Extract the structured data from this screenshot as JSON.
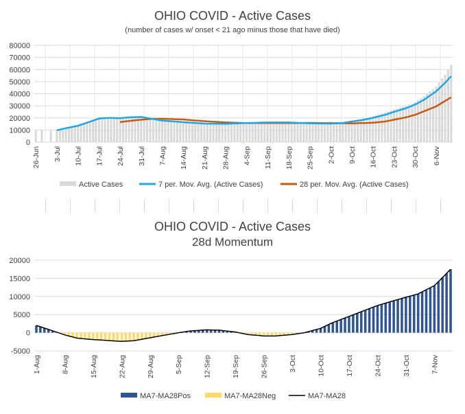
{
  "chart_data": [
    {
      "type": "bar",
      "title": "OHIO COVID - Active Cases",
      "subtitle": "(number of cases w/ onset < 21 ago minus those that have died)",
      "ylim": [
        0,
        80000
      ],
      "yticks": [
        "80000",
        "70000",
        "60000",
        "50000",
        "40000",
        "30000",
        "20000",
        "10000",
        "0"
      ],
      "xticks": [
        "26-Jun",
        "3-Jul",
        "10-Jul",
        "17-Jul",
        "24-Jul",
        "31-Jul",
        "7-Aug",
        "14-Aug",
        "21-Aug",
        "28-Aug",
        "4-Sep",
        "11-Sep",
        "18-Sep",
        "25-Sep",
        "2-Oct",
        "9-Oct",
        "16-Oct",
        "23-Oct",
        "30-Oct",
        "6-Nov"
      ],
      "x_start": "26-Jun",
      "x_end": "11-Nov",
      "grid": true,
      "legend_position": "bottom",
      "legend": [
        "Active Cases",
        "7 per. Mov. Avg. (Active Cases)",
        "28 per. Mov. Avg. (Active Cases)"
      ],
      "colors": {
        "bar": "#d9d9d9",
        "ma7": "#1ea7e1",
        "ma28": "#c55a11"
      },
      "anchors_note": "values listed as [date, value]",
      "active_cases": [
        [
          "26-Jun",
          9500
        ],
        [
          "28-Jun",
          9800
        ],
        [
          "1-Jul",
          9900
        ],
        [
          "3-Jul",
          10500
        ],
        [
          "6-Jul",
          12000
        ],
        [
          "10-Jul",
          14500
        ],
        [
          "13-Jul",
          17000
        ],
        [
          "17-Jul",
          19500
        ],
        [
          "20-Jul",
          20000
        ],
        [
          "24-Jul",
          20500
        ],
        [
          "27-Jul",
          20800
        ],
        [
          "31-Jul",
          21000
        ],
        [
          "3-Aug",
          19500
        ],
        [
          "7-Aug",
          17500
        ],
        [
          "14-Aug",
          16000
        ],
        [
          "21-Aug",
          15000
        ],
        [
          "28-Aug",
          14800
        ],
        [
          "4-Sep",
          15200
        ],
        [
          "11-Sep",
          15800
        ],
        [
          "18-Sep",
          15800
        ],
        [
          "25-Sep",
          15200
        ],
        [
          "2-Oct",
          15200
        ],
        [
          "6-Oct",
          16200
        ],
        [
          "9-Oct",
          17500
        ],
        [
          "13-Oct",
          19500
        ],
        [
          "16-Oct",
          21500
        ],
        [
          "20-Oct",
          24500
        ],
        [
          "23-Oct",
          27000
        ],
        [
          "27-Oct",
          30000
        ],
        [
          "30-Oct",
          33000
        ],
        [
          "2-Nov",
          38000
        ],
        [
          "6-Nov",
          46000
        ],
        [
          "9-Nov",
          56000
        ],
        [
          "11-Nov",
          64000
        ]
      ],
      "ma7": [
        [
          "3-Jul",
          9800
        ],
        [
          "6-Jul",
          11500
        ],
        [
          "10-Jul",
          13500
        ],
        [
          "13-Jul",
          16000
        ],
        [
          "17-Jul",
          19500
        ],
        [
          "20-Jul",
          20000
        ],
        [
          "24-Jul",
          19800
        ],
        [
          "27-Jul",
          20500
        ],
        [
          "31-Jul",
          20800
        ],
        [
          "3-Aug",
          19500
        ],
        [
          "7-Aug",
          17800
        ],
        [
          "14-Aug",
          16500
        ],
        [
          "21-Aug",
          15300
        ],
        [
          "28-Aug",
          15100
        ],
        [
          "4-Sep",
          15800
        ],
        [
          "11-Sep",
          16200
        ],
        [
          "18-Sep",
          16200
        ],
        [
          "25-Sep",
          15500
        ],
        [
          "2-Oct",
          15300
        ],
        [
          "6-Oct",
          15800
        ],
        [
          "9-Oct",
          17000
        ],
        [
          "13-Oct",
          18500
        ],
        [
          "16-Oct",
          20000
        ],
        [
          "20-Oct",
          22500
        ],
        [
          "23-Oct",
          25000
        ],
        [
          "27-Oct",
          28000
        ],
        [
          "30-Oct",
          31000
        ],
        [
          "2-Nov",
          35000
        ],
        [
          "6-Nov",
          42000
        ],
        [
          "9-Nov",
          49000
        ],
        [
          "11-Nov",
          54500
        ]
      ],
      "ma28": [
        [
          "24-Jul",
          16500
        ],
        [
          "27-Jul",
          17500
        ],
        [
          "31-Jul",
          18500
        ],
        [
          "3-Aug",
          19200
        ],
        [
          "7-Aug",
          19300
        ],
        [
          "14-Aug",
          18700
        ],
        [
          "21-Aug",
          17300
        ],
        [
          "28-Aug",
          16300
        ],
        [
          "4-Sep",
          15700
        ],
        [
          "11-Sep",
          15700
        ],
        [
          "18-Sep",
          15700
        ],
        [
          "25-Sep",
          15900
        ],
        [
          "2-Oct",
          15700
        ],
        [
          "9-Oct",
          15500
        ],
        [
          "16-Oct",
          16000
        ],
        [
          "20-Oct",
          17000
        ],
        [
          "23-Oct",
          18500
        ],
        [
          "27-Oct",
          20500
        ],
        [
          "30-Oct",
          22500
        ],
        [
          "2-Nov",
          25500
        ],
        [
          "6-Nov",
          29500
        ],
        [
          "9-Nov",
          34000
        ],
        [
          "11-Nov",
          37000
        ]
      ]
    },
    {
      "type": "bar",
      "title": "OHIO COVID - Active Cases",
      "subtitle": "28d Momentum",
      "ylim": [
        -5000,
        20000
      ],
      "yticks": [
        "20000",
        "15000",
        "10000",
        "5000",
        "0",
        "-5000"
      ],
      "xticks": [
        "1-Aug",
        "8-Aug",
        "15-Aug",
        "22-Aug",
        "29-Aug",
        "5-Sep",
        "12-Sep",
        "19-Sep",
        "26-Sep",
        "3-Oct",
        "10-Oct",
        "17-Oct",
        "24-Oct",
        "31-Oct",
        "7-Nov"
      ],
      "x_start": "1-Aug",
      "x_end": "11-Nov",
      "grid": true,
      "legend_position": "bottom",
      "legend": [
        "MA7-MA28Pos",
        "MA7-MA28Neg",
        "MA7-MA28"
      ],
      "colors": {
        "pos": "#2f5597",
        "neg": "#ffd966",
        "line": "#000000"
      },
      "momentum": [
        [
          "1-Aug",
          2000
        ],
        [
          "4-Aug",
          900
        ],
        [
          "8-Aug",
          -600
        ],
        [
          "11-Aug",
          -1500
        ],
        [
          "15-Aug",
          -1900
        ],
        [
          "18-Aug",
          -2100
        ],
        [
          "22-Aug",
          -2400
        ],
        [
          "25-Aug",
          -2200
        ],
        [
          "29-Aug",
          -1400
        ],
        [
          "1-Sep",
          -800
        ],
        [
          "5-Sep",
          0
        ],
        [
          "8-Sep",
          500
        ],
        [
          "12-Sep",
          800
        ],
        [
          "15-Sep",
          700
        ],
        [
          "19-Sep",
          200
        ],
        [
          "22-Sep",
          -500
        ],
        [
          "26-Sep",
          -900
        ],
        [
          "29-Sep",
          -900
        ],
        [
          "3-Oct",
          -500
        ],
        [
          "6-Oct",
          0
        ],
        [
          "10-Oct",
          1200
        ],
        [
          "13-Oct",
          2800
        ],
        [
          "17-Oct",
          4500
        ],
        [
          "20-Oct",
          5800
        ],
        [
          "24-Oct",
          7500
        ],
        [
          "27-Oct",
          8500
        ],
        [
          "31-Oct",
          9800
        ],
        [
          "3-Nov",
          10700
        ],
        [
          "7-Nov",
          13000
        ],
        [
          "9-Nov",
          15200
        ],
        [
          "11-Nov",
          17500
        ]
      ]
    }
  ]
}
